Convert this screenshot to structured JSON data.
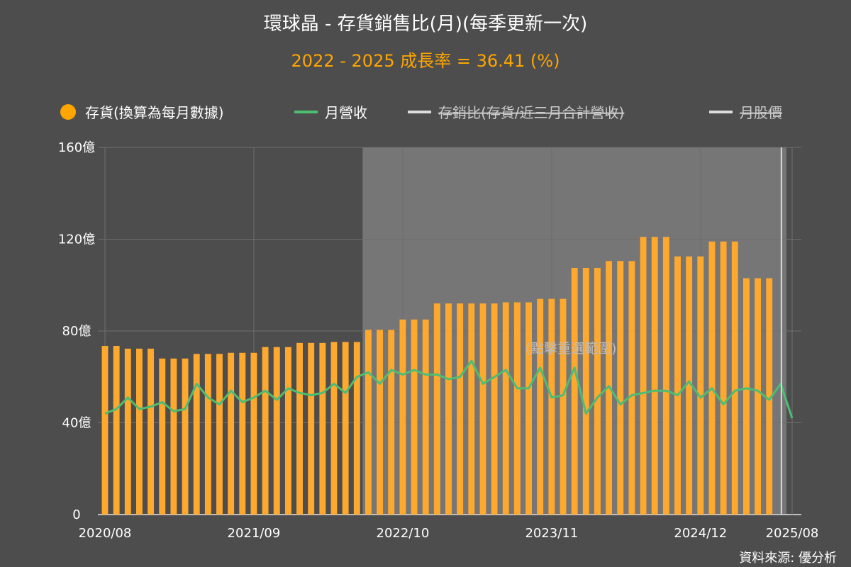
{
  "chart_data": {
    "type": "bar",
    "title": "環球晶 - 存貨銷售比(月)(每季更新一次)",
    "subtitle": "2022 - 2025 成長率 = 36.41 (%)",
    "source": "資料來源: 優分析",
    "hint": "(點擊重選範圍)",
    "legend": [
      {
        "label": "存貨(換算為每月數據)",
        "color": "#ffa500",
        "hidden": false
      },
      {
        "label": "月營收",
        "color": "#4dbd74",
        "hidden": false
      },
      {
        "label": "存銷比(存貨/近三月合計營收)",
        "color": "#dddddd",
        "hidden": true
      },
      {
        "label": "月股價",
        "color": "#dddddd",
        "hidden": true
      }
    ],
    "y_ticks": [
      "0",
      "40億",
      "80億",
      "120億",
      "160億"
    ],
    "ylim": [
      0,
      160
    ],
    "x_ticks": [
      "2020/08",
      "2021/09",
      "2022/10",
      "2023/11",
      "2024/12",
      "2025/08"
    ],
    "x_start": "2020/08",
    "grid": true,
    "highlight_range": [
      "2022/07",
      "2025/07"
    ],
    "series": [
      {
        "name": "存貨(換算為每月數據)",
        "values": [
          73.5,
          73.5,
          72.3,
          72.3,
          72.3,
          68,
          68,
          68,
          70,
          70,
          70,
          70.5,
          70.5,
          70.5,
          73,
          73,
          73,
          74.8,
          74.8,
          74.8,
          75.2,
          75.2,
          75.2,
          80.5,
          80.5,
          80.5,
          85,
          85,
          85,
          92,
          92,
          92,
          92,
          92,
          92,
          92.5,
          92.5,
          92.5,
          94,
          94,
          94,
          107.5,
          107.5,
          107.5,
          110.5,
          110.5,
          110.5,
          121,
          121,
          121,
          112.5,
          112.5,
          112.5,
          119,
          119,
          119,
          103,
          103,
          103
        ]
      },
      {
        "name": "月營收",
        "values": [
          44,
          46,
          51,
          46,
          47,
          49,
          45,
          46,
          57,
          51,
          48,
          54,
          49,
          51,
          54,
          50,
          55,
          53,
          52,
          53,
          57,
          53,
          60,
          62,
          57,
          63,
          61,
          63,
          61,
          61,
          59,
          60,
          67,
          57,
          60,
          63,
          55,
          55,
          64,
          51,
          52,
          64,
          44,
          51,
          56,
          48,
          52,
          53,
          54,
          54,
          52,
          58,
          51,
          55,
          48,
          54,
          55,
          54,
          50,
          57,
          42
        ]
      }
    ]
  }
}
